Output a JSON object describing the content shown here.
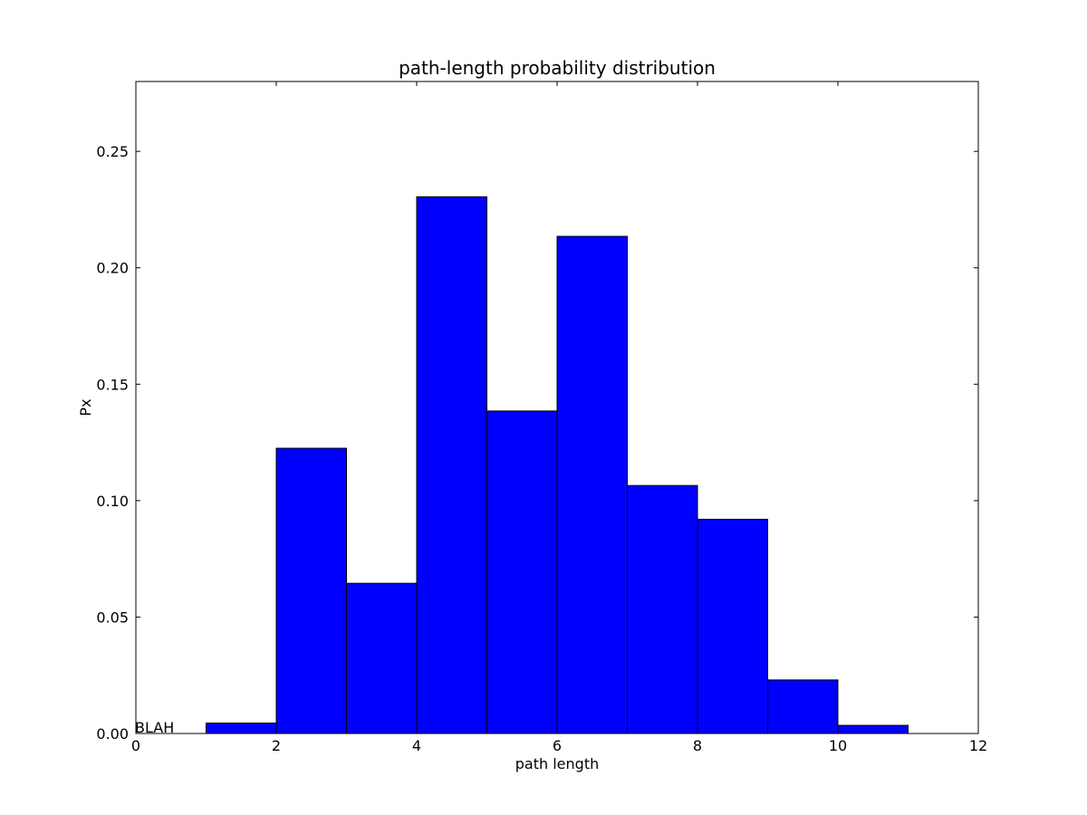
{
  "chart_data": {
    "type": "bar",
    "title": "path-length probability distribution",
    "xlabel": "path length",
    "ylabel": "Px",
    "xlim": [
      0,
      12
    ],
    "ylim": [
      0,
      0.28
    ],
    "xticks": [
      "0",
      "2",
      "4",
      "6",
      "8",
      "10",
      "12"
    ],
    "yticks": [
      "0.00",
      "0.05",
      "0.10",
      "0.15",
      "0.20",
      "0.25"
    ],
    "grid": false,
    "bars": [
      {
        "x0": 1,
        "x1": 2,
        "value": 0.0045
      },
      {
        "x0": 2,
        "x1": 3,
        "value": 0.1225
      },
      {
        "x0": 3,
        "x1": 4,
        "value": 0.0645
      },
      {
        "x0": 4,
        "x1": 5,
        "value": 0.2305
      },
      {
        "x0": 5,
        "x1": 6,
        "value": 0.1385
      },
      {
        "x0": 6,
        "x1": 7,
        "value": 0.2135
      },
      {
        "x0": 7,
        "x1": 8,
        "value": 0.1065
      },
      {
        "x0": 8,
        "x1": 9,
        "value": 0.092
      },
      {
        "x0": 9,
        "x1": 10,
        "value": 0.023
      },
      {
        "x0": 10,
        "x1": 11,
        "value": 0.0035
      }
    ],
    "bar_color": "#0000ff",
    "edge_color": "#000000",
    "annotations": [
      {
        "text": "BLAH",
        "x": 0,
        "y": 0
      }
    ]
  }
}
